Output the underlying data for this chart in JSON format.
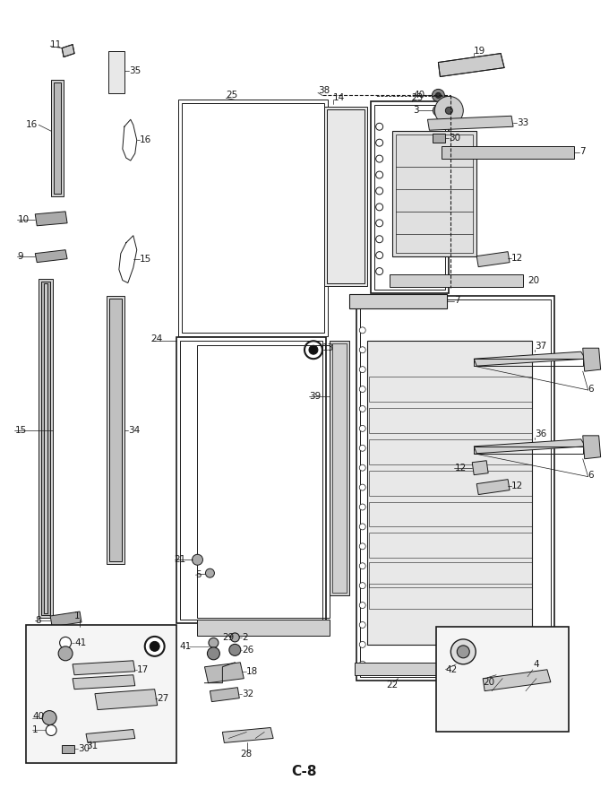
{
  "page_label": "C-8",
  "background_color": "#ffffff",
  "fig_width": 6.8,
  "fig_height": 8.9,
  "dpi": 100,
  "lc": "#1a1a1a",
  "tc": "#1a1a1a",
  "lw": 0.7,
  "fs": 7.5,
  "page_label_fontsize": 11
}
